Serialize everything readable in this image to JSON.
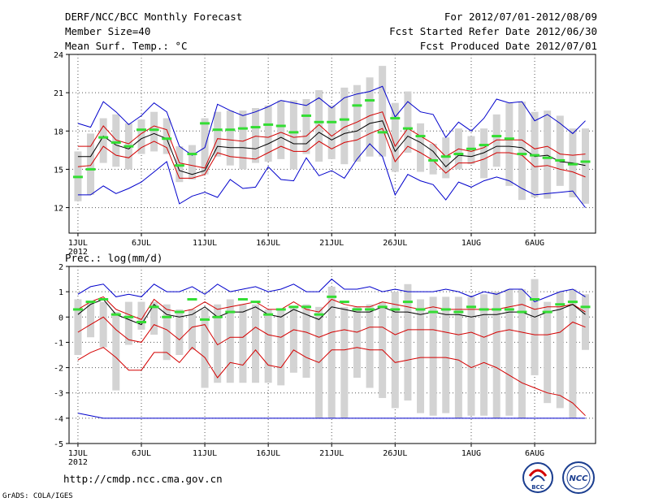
{
  "header": {
    "title": "DERF/NCC/BCC Monthly Forecast",
    "member_size": "Member Size=40",
    "variable_1": "Mean Surf. Temp.: °C",
    "period": "For 2012/07/01-2012/08/09",
    "fcst_started": "Fcst Started Refer Date 2012/06/30",
    "fcst_produced": "Fcst Produced Date 2012/07/01"
  },
  "footer": {
    "url": "http://cmdp.ncc.cma.gov.cn",
    "credit": "GrADS: COLA/IGES",
    "logo_bcc": "BCC",
    "logo_ncc": "NCC"
  },
  "colors": {
    "ensemble_mean": "#000000",
    "spread": "#d40000",
    "extreme": "#0000cc",
    "observed": "#33dd33",
    "box": "#d3d3d3",
    "grid": "#555555"
  },
  "chart_data": [
    {
      "type": "line",
      "title": "Mean Surf. Temp.: °C",
      "x_day_index_start": 1,
      "ylim": [
        10,
        24
      ],
      "yticks": [
        12,
        15,
        18,
        21,
        24
      ],
      "xtick_labels": [
        {
          "day": 1,
          "label": "1JUL",
          "sub": "2012"
        },
        {
          "day": 6,
          "label": "6JUL"
        },
        {
          "day": 11,
          "label": "11JUL"
        },
        {
          "day": 16,
          "label": "16JUL"
        },
        {
          "day": 21,
          "label": "21JUL"
        },
        {
          "day": 26,
          "label": "26JUL"
        },
        {
          "day": 32,
          "label": "1AUG"
        },
        {
          "day": 37,
          "label": "6AUG"
        }
      ],
      "series": [
        {
          "name": "max",
          "values": [
            18.6,
            18.3,
            20.3,
            19.5,
            18.5,
            19.2,
            20.2,
            19.5,
            16.8,
            16.1,
            16.7,
            20.1,
            19.6,
            19.2,
            19.5,
            19.9,
            20.4,
            20.2,
            20.0,
            20.6,
            19.8,
            20.6,
            20.9,
            21.1,
            21.5,
            19.1,
            20.3,
            19.5,
            19.3,
            17.5,
            18.7,
            18.0,
            19.0,
            20.5,
            20.2,
            20.3,
            18.8,
            19.3,
            18.6,
            17.8,
            18.8
          ]
        },
        {
          "name": "q_high",
          "values": [
            16.8,
            16.8,
            18.4,
            17.3,
            17.0,
            17.8,
            18.4,
            18.1,
            15.5,
            15.3,
            15.1,
            17.4,
            17.3,
            17.2,
            17.6,
            17.5,
            17.9,
            17.5,
            17.6,
            18.5,
            17.6,
            18.3,
            18.7,
            19.2,
            19.5,
            16.8,
            18.2,
            17.6,
            17.0,
            16.0,
            16.6,
            16.4,
            16.7,
            17.3,
            17.3,
            17.3,
            16.6,
            16.8,
            16.2,
            16.1,
            16.2
          ]
        },
        {
          "name": "mean",
          "values": [
            16.0,
            16.0,
            17.6,
            16.9,
            16.6,
            17.4,
            17.8,
            17.4,
            14.9,
            14.6,
            14.9,
            16.8,
            16.7,
            16.7,
            16.6,
            17.0,
            17.5,
            17.0,
            17.0,
            17.9,
            17.3,
            17.8,
            18.0,
            18.6,
            18.8,
            16.4,
            17.6,
            17.1,
            16.4,
            15.2,
            16.1,
            16.0,
            16.3,
            16.8,
            16.8,
            16.7,
            16.0,
            16.1,
            15.6,
            15.5,
            15.3
          ]
        },
        {
          "name": "q_low",
          "values": [
            15.2,
            15.3,
            16.8,
            16.1,
            15.9,
            16.7,
            17.2,
            16.7,
            14.3,
            14.3,
            14.6,
            16.3,
            16.0,
            15.9,
            15.8,
            16.3,
            16.8,
            16.4,
            16.4,
            17.2,
            16.6,
            17.1,
            17.3,
            17.8,
            18.2,
            15.6,
            16.8,
            16.3,
            15.7,
            14.7,
            15.5,
            15.5,
            15.8,
            16.3,
            16.3,
            16.1,
            15.2,
            15.3,
            15.0,
            14.8,
            14.4
          ]
        },
        {
          "name": "min",
          "values": [
            13.0,
            13.0,
            13.7,
            13.1,
            13.5,
            14.0,
            14.8,
            15.6,
            12.3,
            12.9,
            13.2,
            12.8,
            14.2,
            13.5,
            13.6,
            15.2,
            14.2,
            14.1,
            15.9,
            14.5,
            14.9,
            14.3,
            15.8,
            17.0,
            16.0,
            13.0,
            14.6,
            14.1,
            13.8,
            12.6,
            14.0,
            13.6,
            14.1,
            14.4,
            14.1,
            13.5,
            13.0,
            13.1,
            13.2,
            13.3,
            12.0
          ]
        },
        {
          "name": "observed",
          "values": [
            14.4,
            15.0,
            17.5,
            17.1,
            16.8,
            18.1,
            18.1,
            17.4,
            15.3,
            16.2,
            18.6,
            18.1,
            18.1,
            18.2,
            18.3,
            18.5,
            18.4,
            17.9,
            19.2,
            18.7,
            18.7,
            18.9,
            20.0,
            20.4,
            17.9,
            19.0,
            18.2,
            17.6,
            15.7,
            16.0,
            16.2,
            16.6,
            16.9,
            17.6,
            17.4,
            16.2,
            16.1,
            15.9,
            15.7,
            15.4,
            15.6
          ]
        },
        {
          "name": "box_low",
          "values": [
            12.5,
            13.0,
            15.5,
            15.2,
            15.0,
            16.2,
            16.4,
            16.2,
            14.0,
            14.2,
            14.6,
            16.0,
            15.3,
            15.0,
            15.5,
            15.6,
            15.8,
            15.0,
            16.2,
            15.6,
            15.8,
            15.4,
            15.6,
            16.0,
            16.0,
            14.8,
            16.3,
            14.8,
            14.6,
            14.3,
            15.0,
            15.4,
            14.3,
            15.2,
            13.7,
            12.6,
            12.8,
            12.7,
            13.7,
            12.8,
            12.3
          ]
        },
        {
          "name": "box_high",
          "values": [
            16.4,
            17.8,
            19.0,
            19.3,
            18.6,
            18.9,
            19.5,
            19.0,
            16.8,
            16.9,
            19.0,
            19.5,
            19.6,
            19.6,
            19.8,
            20.0,
            20.4,
            20.4,
            20.5,
            21.2,
            20.0,
            21.4,
            21.6,
            22.2,
            23.1,
            20.2,
            21.1,
            18.6,
            17.0,
            17.5,
            18.2,
            17.6,
            18.2,
            19.3,
            20.2,
            20.3,
            19.5,
            19.6,
            19.2,
            18.2,
            18.2
          ]
        }
      ]
    },
    {
      "type": "line",
      "title": "Prec.: log(mm/d)",
      "x_day_index_start": 1,
      "ylim": [
        -5,
        2
      ],
      "yticks": [
        -5,
        -4,
        -3,
        -2,
        -1,
        0,
        1,
        2
      ],
      "xtick_labels": [
        {
          "day": 1,
          "label": "1JUL",
          "sub": "2012"
        },
        {
          "day": 6,
          "label": "6JUL"
        },
        {
          "day": 11,
          "label": "11JUL"
        },
        {
          "day": 16,
          "label": "16JUL"
        },
        {
          "day": 21,
          "label": "21JUL"
        },
        {
          "day": 26,
          "label": "26JUL"
        },
        {
          "day": 32,
          "label": "1AUG"
        },
        {
          "day": 37,
          "label": "6AUG"
        }
      ],
      "series": [
        {
          "name": "max",
          "values": [
            0.9,
            1.2,
            1.3,
            0.8,
            0.9,
            0.8,
            1.3,
            1.0,
            1.0,
            1.2,
            0.9,
            1.3,
            1.0,
            1.1,
            1.2,
            1.0,
            1.1,
            1.3,
            1.0,
            1.0,
            1.5,
            1.1,
            1.1,
            1.2,
            1.0,
            1.1,
            1.0,
            1.0,
            1.0,
            1.1,
            1.0,
            0.8,
            1.0,
            0.9,
            1.1,
            1.1,
            0.6,
            0.8,
            1.0,
            1.1,
            0.8
          ]
        },
        {
          "name": "q_high",
          "values": [
            0.3,
            0.6,
            0.8,
            0.3,
            0.1,
            -0.1,
            0.7,
            0.3,
            0.2,
            0.3,
            0.6,
            0.3,
            0.4,
            0.5,
            0.6,
            0.3,
            0.3,
            0.6,
            0.3,
            0.2,
            0.7,
            0.5,
            0.4,
            0.4,
            0.6,
            0.5,
            0.4,
            0.3,
            0.4,
            0.3,
            0.3,
            0.3,
            0.3,
            0.3,
            0.4,
            0.5,
            0.3,
            0.4,
            0.4,
            0.5,
            0.2
          ]
        },
        {
          "name": "mean",
          "values": [
            0.1,
            0.5,
            0.7,
            0.1,
            -0.1,
            -0.3,
            0.5,
            0.1,
            0.0,
            0.1,
            0.4,
            0.0,
            0.2,
            0.2,
            0.4,
            0.1,
            0.0,
            0.3,
            0.1,
            -0.1,
            0.4,
            0.3,
            0.2,
            0.2,
            0.4,
            0.2,
            0.2,
            0.1,
            0.2,
            0.1,
            0.1,
            0.0,
            0.1,
            0.1,
            0.2,
            0.2,
            0.0,
            0.2,
            0.3,
            0.5,
            0.1
          ]
        },
        {
          "name": "q_low",
          "values": [
            -0.6,
            -0.3,
            0.0,
            -0.5,
            -0.9,
            -1.0,
            -0.3,
            -0.5,
            -0.9,
            -0.4,
            -0.3,
            -1.1,
            -0.8,
            -0.8,
            -0.4,
            -0.7,
            -0.8,
            -0.5,
            -0.6,
            -0.8,
            -0.6,
            -0.5,
            -0.6,
            -0.4,
            -0.4,
            -0.7,
            -0.5,
            -0.5,
            -0.5,
            -0.6,
            -0.7,
            -0.6,
            -0.8,
            -0.6,
            -0.5,
            -0.6,
            -0.7,
            -0.7,
            -0.6,
            -0.2,
            -0.4
          ]
        },
        {
          "name": "q_low_outer",
          "values": [
            -1.7,
            -1.4,
            -1.2,
            -1.6,
            -2.1,
            -2.1,
            -1.4,
            -1.4,
            -1.8,
            -1.2,
            -1.6,
            -2.4,
            -1.8,
            -1.9,
            -1.3,
            -1.9,
            -2.0,
            -1.3,
            -1.6,
            -1.8,
            -1.3,
            -1.3,
            -1.2,
            -1.3,
            -1.3,
            -1.8,
            -1.7,
            -1.6,
            -1.6,
            -1.6,
            -1.7,
            -2.0,
            -1.8,
            -2.0,
            -2.3,
            -2.6,
            -2.8,
            -3.0,
            -3.1,
            -3.4,
            -3.9
          ]
        },
        {
          "name": "min",
          "values": [
            -3.8,
            -3.9,
            -4.0,
            -4.0,
            -4.0,
            -4.0,
            -4.0,
            -4.0,
            -4.0,
            -4.0,
            -4.0,
            -4.0,
            -4.0,
            -4.0,
            -4.0,
            -4.0,
            -4.0,
            -4.0,
            -4.0,
            -4.0,
            -4.0,
            -4.0,
            -4.0,
            -4.0,
            -4.0,
            -4.0,
            -4.0,
            -4.0,
            -4.0,
            -4.0,
            -4.0,
            -4.0,
            -4.0,
            -4.0,
            -4.0,
            -4.0,
            -4.0,
            -4.0,
            -4.0,
            -4.0,
            -4.0
          ]
        },
        {
          "name": "observed",
          "values": [
            0.3,
            0.6,
            0.7,
            0.1,
            0.0,
            -0.2,
            0.4,
            0.0,
            0.2,
            0.7,
            -0.1,
            0.0,
            0.2,
            0.7,
            0.6,
            0.1,
            0.3,
            0.4,
            0.4,
            0.1,
            0.8,
            0.6,
            0.3,
            0.3,
            0.4,
            0.3,
            0.6,
            0.3,
            0.2,
            0.3,
            0.2,
            0.4,
            0.3,
            0.3,
            0.3,
            0.2,
            0.7,
            0.2,
            0.5,
            0.6,
            0.4
          ]
        },
        {
          "name": "box_low",
          "values": [
            -1.5,
            -0.8,
            -1.2,
            -2.9,
            -1.1,
            -0.5,
            -0.7,
            -1.7,
            -1.5,
            -1.3,
            -2.8,
            -2.6,
            -2.6,
            -2.6,
            -2.6,
            -2.6,
            -2.7,
            -2.2,
            -2.4,
            -4.0,
            -4.0,
            -4.0,
            -2.4,
            -2.8,
            -3.2,
            -3.6,
            -3.3,
            -3.8,
            -3.9,
            -3.8,
            -4.0,
            -3.9,
            -3.9,
            -4.0,
            -3.9,
            -4.0,
            -2.3,
            -3.4,
            -3.6,
            -4.0,
            -1.3
          ]
        },
        {
          "name": "box_high",
          "values": [
            0.7,
            0.6,
            0.6,
            0.2,
            0.6,
            0.6,
            0.6,
            0.5,
            0.3,
            0.3,
            0.3,
            0.5,
            0.7,
            0.5,
            0.5,
            0.3,
            0.3,
            0.4,
            0.5,
            0.4,
            1.2,
            0.4,
            0.4,
            0.5,
            0.6,
            1.0,
            1.3,
            0.7,
            0.8,
            0.8,
            0.8,
            0.8,
            0.9,
            1.0,
            1.1,
            1.1,
            1.5,
            0.6,
            1.0,
            1.1,
            0.9
          ]
        }
      ]
    }
  ]
}
